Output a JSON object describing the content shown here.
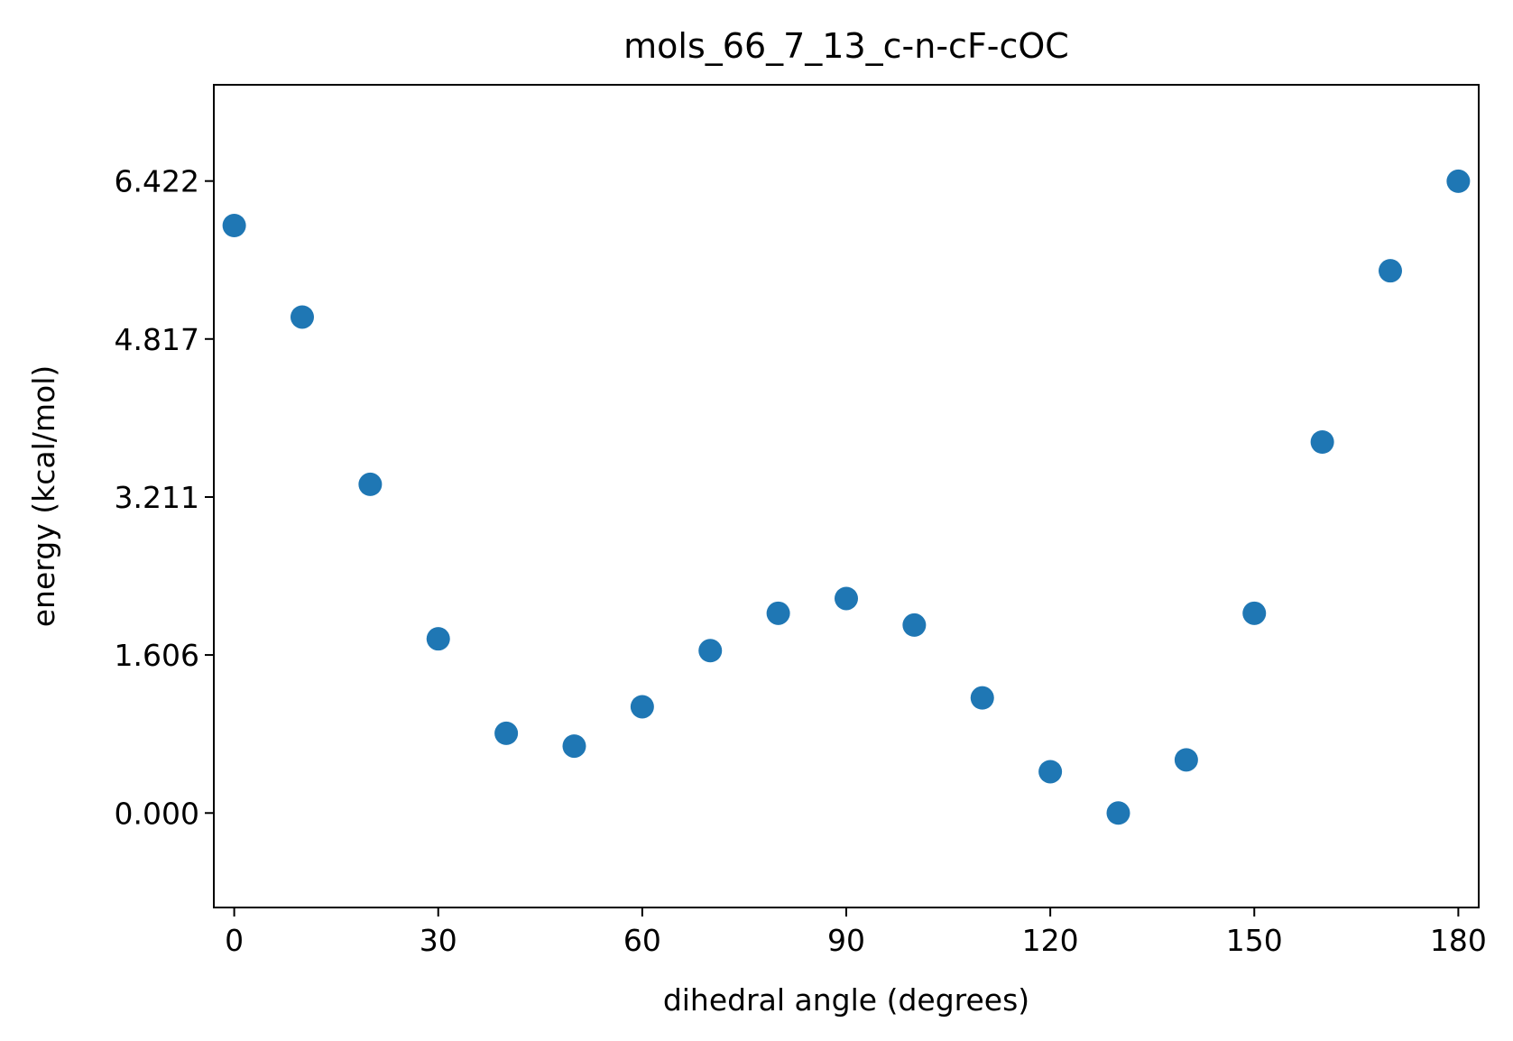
{
  "chart_data": {
    "type": "scatter",
    "title": "mols_66_7_13_c-n-cF-cOC",
    "xlabel": "dihedral angle (degrees)",
    "ylabel": "energy (kcal/mol)",
    "xlim": [
      -3,
      183
    ],
    "ylim": [
      -0.96,
      7.4
    ],
    "xticks": [
      0,
      30,
      60,
      90,
      120,
      150,
      180
    ],
    "xtick_labels": [
      "0",
      "30",
      "60",
      "90",
      "120",
      "150",
      "180"
    ],
    "yticks": [
      0.0,
      1.606,
      3.211,
      4.817,
      6.422
    ],
    "ytick_labels": [
      "0.000",
      "1.606",
      "3.211",
      "4.817",
      "6.422"
    ],
    "grid": false,
    "marker_color": "#1f77b4",
    "series": [
      {
        "x": [
          0,
          10,
          20,
          30,
          40,
          50,
          60,
          70,
          80,
          90,
          100,
          110,
          120,
          130,
          140,
          150,
          160,
          170,
          180
        ],
        "y": [
          5.97,
          5.04,
          3.34,
          1.77,
          0.81,
          0.68,
          1.08,
          1.65,
          2.03,
          2.18,
          1.91,
          1.17,
          0.42,
          0.0,
          0.54,
          2.03,
          3.77,
          5.51,
          6.42
        ]
      }
    ]
  }
}
